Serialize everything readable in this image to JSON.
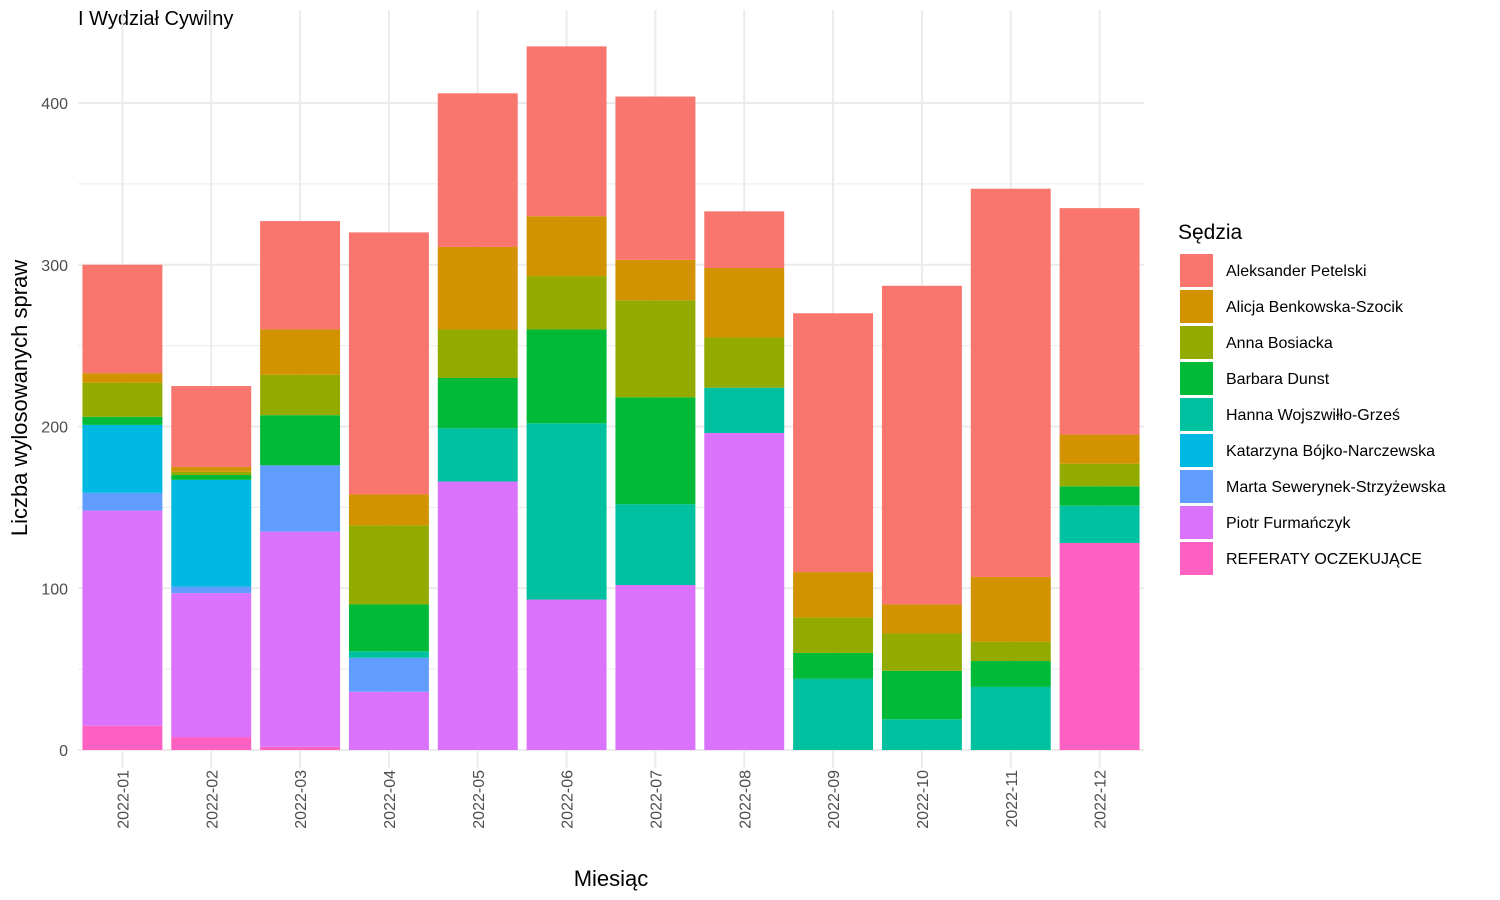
{
  "title": "I Wydział Cywilny",
  "chart_data": {
    "type": "bar",
    "stacked": true,
    "title": "I Wydział Cywilny",
    "xlabel": "Miesiąc",
    "ylabel": "Liczba wylosowanych spraw",
    "ylim": [
      0,
      435
    ],
    "yticks": [
      0,
      100,
      200,
      300,
      400
    ],
    "grid": true,
    "legend_title": "Sędzia",
    "legend_position": "right",
    "categories": [
      "2022-01",
      "2022-02",
      "2022-03",
      "2022-04",
      "2022-05",
      "2022-06",
      "2022-07",
      "2022-08",
      "2022-09",
      "2022-10",
      "2022-11",
      "2022-12"
    ],
    "series": [
      {
        "name": "REFERATY OCZEKUJĄCE",
        "color": "#FF61C3",
        "values": [
          15,
          8,
          2,
          0,
          0,
          0,
          0,
          0,
          0,
          0,
          0,
          128
        ]
      },
      {
        "name": "Piotr Furmańczyk",
        "color": "#DB72FB",
        "values": [
          133,
          89,
          133,
          36,
          166,
          93,
          102,
          196,
          0,
          0,
          0,
          0
        ]
      },
      {
        "name": "Marta Sewerynek-Strzyżewska",
        "color": "#619CFF",
        "values": [
          11,
          4,
          41,
          21,
          0,
          0,
          0,
          0,
          0,
          0,
          0,
          0
        ]
      },
      {
        "name": "Katarzyna Bójko-Narczewska",
        "color": "#00B9E3",
        "values": [
          42,
          66,
          0,
          0,
          0,
          0,
          0,
          0,
          0,
          0,
          0,
          0
        ]
      },
      {
        "name": "Hanna Wojszwiłło-Grześ",
        "color": "#00C19F",
        "values": [
          0,
          0,
          0,
          4,
          33,
          109,
          50,
          28,
          44,
          19,
          39,
          23
        ]
      },
      {
        "name": "Barbara Dunst",
        "color": "#00BA38",
        "values": [
          5,
          3,
          31,
          29,
          31,
          58,
          66,
          0,
          16,
          30,
          16,
          12
        ]
      },
      {
        "name": "Anna Bosiacka",
        "color": "#93AA00",
        "values": [
          21,
          2,
          25,
          49,
          30,
          33,
          60,
          31,
          22,
          23,
          12,
          14
        ]
      },
      {
        "name": "Alicja Benkowska-Szocik",
        "color": "#D39200",
        "values": [
          6,
          3,
          28,
          19,
          51,
          37,
          25,
          43,
          28,
          18,
          40,
          18
        ]
      },
      {
        "name": "Aleksander Petelski",
        "color": "#F8766D",
        "values": [
          67,
          50,
          67,
          162,
          95,
          105,
          101,
          35,
          160,
          197,
          240,
          140
        ]
      }
    ],
    "legend_order": [
      "Aleksander Petelski",
      "Alicja Benkowska-Szocik",
      "Anna Bosiacka",
      "Barbara Dunst",
      "Hanna Wojszwiłło-Grześ",
      "Katarzyna Bójko-Narczewska",
      "Marta Sewerynek-Strzyżewska",
      "Piotr Furmańczyk",
      "REFERATY OCZEKUJĄCE"
    ]
  }
}
